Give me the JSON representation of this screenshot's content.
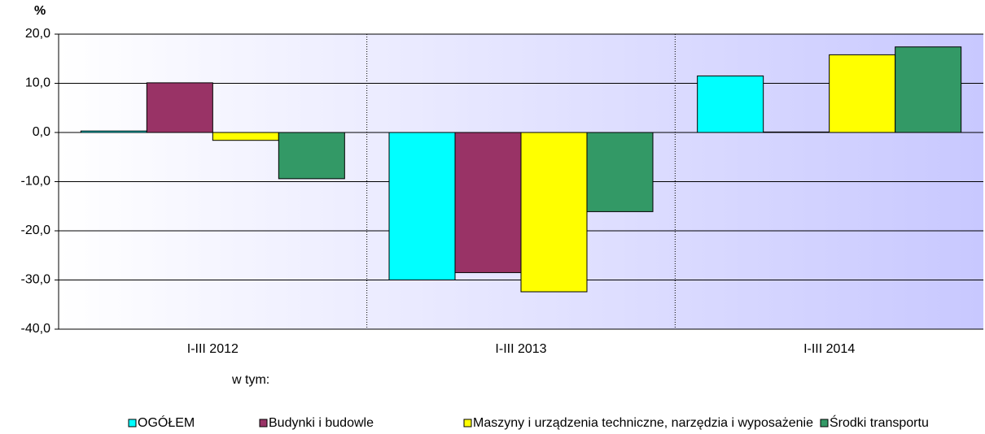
{
  "chart_data": {
    "type": "bar",
    "y_axis_label": "%",
    "legend_title": "w tym:",
    "categories": [
      "I-III 2012",
      "I-III 2013",
      "I-III 2014"
    ],
    "series": [
      {
        "name": "OGÓŁEM",
        "color": "#00ffff",
        "values": [
          0.3,
          -30.0,
          11.5
        ]
      },
      {
        "name": "Budynki i budowle",
        "color": "#993366",
        "values": [
          10.1,
          -28.5,
          0.1
        ]
      },
      {
        "name": "Maszyny i urządzenia techniczne, narzędzia i wyposażenie",
        "color": "#ffff00",
        "values": [
          -1.6,
          -32.4,
          15.8
        ]
      },
      {
        "name": "Środki transportu",
        "color": "#339966",
        "values": [
          -9.4,
          -16.1,
          17.4
        ]
      }
    ],
    "ylim": [
      -40,
      20
    ],
    "yticks": [
      {
        "value": -40,
        "label": "-40,0"
      },
      {
        "value": -30,
        "label": "-30,0"
      },
      {
        "value": -20,
        "label": "-20,0"
      },
      {
        "value": -10,
        "label": "-10,0"
      },
      {
        "value": 0,
        "label": "0,0"
      },
      {
        "value": 10,
        "label": "10,0"
      },
      {
        "value": 20,
        "label": "20,0"
      }
    ],
    "grid": true,
    "legend": "bottom"
  }
}
